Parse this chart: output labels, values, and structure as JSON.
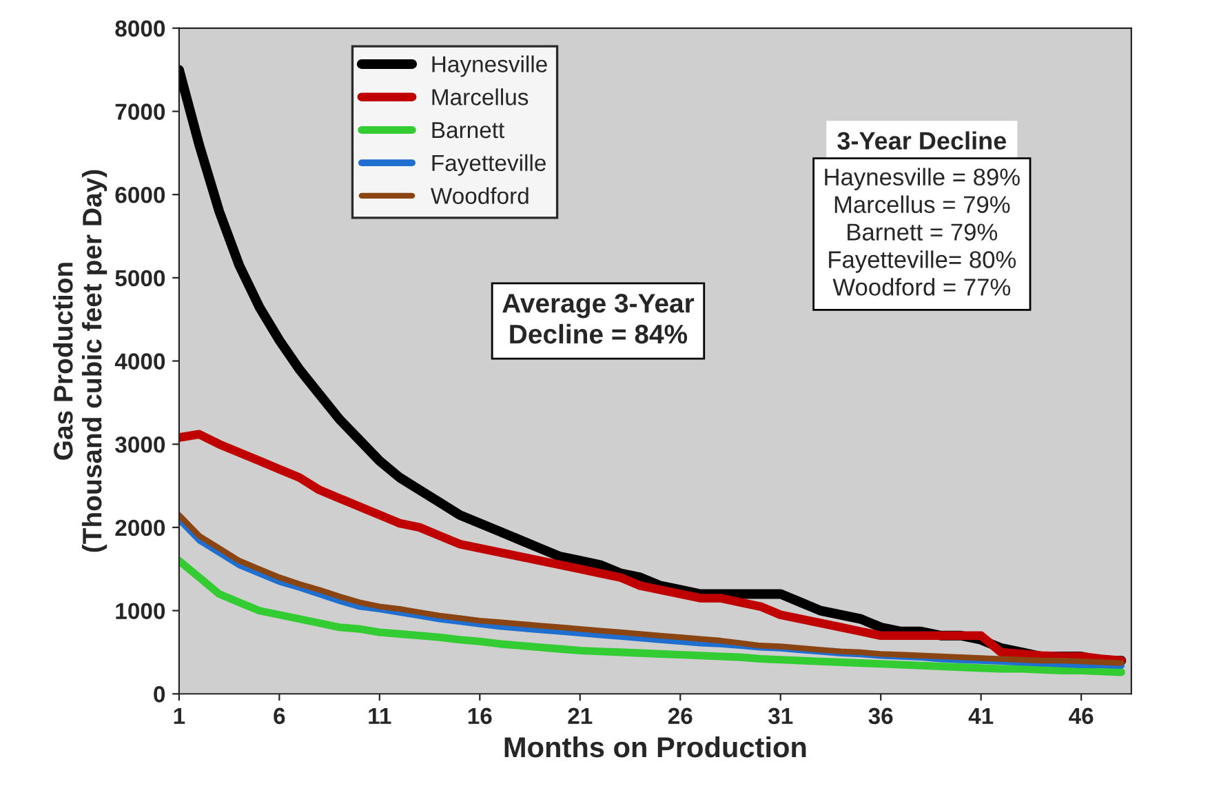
{
  "chart_data": {
    "type": "line",
    "xlabel": "Months on Production",
    "ylabel": "Gas Production\n(Thousand cubic feet per Day)",
    "x": [
      1,
      2,
      3,
      4,
      5,
      6,
      7,
      8,
      9,
      10,
      11,
      12,
      13,
      14,
      15,
      16,
      17,
      18,
      19,
      20,
      21,
      22,
      23,
      24,
      25,
      26,
      27,
      28,
      29,
      30,
      31,
      32,
      33,
      34,
      35,
      36,
      37,
      38,
      39,
      40,
      41,
      42,
      43,
      44,
      45,
      46,
      47,
      48
    ],
    "series": [
      {
        "name": "Haynesville",
        "color": "#000000",
        "values": [
          7500,
          6600,
          5800,
          5150,
          4650,
          4250,
          3900,
          3600,
          3300,
          3050,
          2800,
          2600,
          2450,
          2300,
          2150,
          2050,
          1950,
          1850,
          1750,
          1650,
          1600,
          1550,
          1450,
          1400,
          1300,
          1250,
          1200,
          1200,
          1200,
          1200,
          1200,
          1100,
          1000,
          950,
          900,
          800,
          750,
          750,
          700,
          700,
          650,
          550,
          500,
          450,
          450,
          450,
          400,
          400
        ]
      },
      {
        "name": "Marcellus",
        "color": "#c00000",
        "values": [
          3080,
          3120,
          3000,
          2900,
          2800,
          2700,
          2600,
          2450,
          2350,
          2250,
          2150,
          2050,
          2000,
          1900,
          1800,
          1750,
          1700,
          1650,
          1600,
          1550,
          1500,
          1450,
          1400,
          1300,
          1250,
          1200,
          1150,
          1150,
          1100,
          1050,
          950,
          900,
          850,
          800,
          750,
          700,
          700,
          700,
          700,
          700,
          700,
          500,
          480,
          460,
          450,
          450,
          420,
          400
        ]
      },
      {
        "name": "Barnett",
        "color": "#33cc33",
        "values": [
          1600,
          1400,
          1200,
          1100,
          1000,
          950,
          900,
          850,
          800,
          780,
          740,
          720,
          700,
          680,
          650,
          630,
          600,
          580,
          560,
          540,
          520,
          510,
          500,
          490,
          480,
          470,
          460,
          450,
          440,
          420,
          410,
          400,
          390,
          380,
          370,
          360,
          350,
          340,
          330,
          320,
          310,
          300,
          300,
          290,
          280,
          280,
          270,
          260
        ]
      },
      {
        "name": "Fayetteville",
        "color": "#1f6fd0",
        "values": [
          2100,
          1850,
          1700,
          1550,
          1450,
          1350,
          1280,
          1200,
          1120,
          1050,
          1020,
          980,
          940,
          900,
          870,
          840,
          810,
          790,
          770,
          750,
          730,
          710,
          690,
          670,
          650,
          630,
          610,
          600,
          580,
          560,
          550,
          530,
          510,
          490,
          480,
          460,
          450,
          440,
          420,
          410,
          400,
          390,
          380,
          370,
          360,
          350,
          350,
          340
        ]
      },
      {
        "name": "Woodford",
        "color": "#8b4513",
        "values": [
          2150,
          1900,
          1750,
          1600,
          1500,
          1400,
          1320,
          1250,
          1170,
          1100,
          1050,
          1020,
          980,
          940,
          910,
          880,
          860,
          840,
          820,
          800,
          780,
          760,
          740,
          720,
          700,
          680,
          660,
          640,
          610,
          580,
          570,
          550,
          530,
          510,
          500,
          480,
          470,
          460,
          450,
          440,
          430,
          420,
          410,
          400,
          400,
          390,
          380,
          370
        ]
      }
    ],
    "xlim": [
      1,
      48.5
    ],
    "xticks": [
      1,
      6,
      11,
      16,
      21,
      26,
      31,
      36,
      41,
      46
    ],
    "ylim": [
      0,
      8000
    ],
    "yticks": [
      0,
      1000,
      2000,
      3000,
      4000,
      5000,
      6000,
      7000,
      8000
    ],
    "annotations": [
      "Average 3-Year\nDecline = 84%",
      "3-Year Decline",
      "Haynesville = 89%\nMarcellus = 79%\nBarnett = 79%\nFayetteville= 80%\nWoodford = 77%"
    ],
    "legend": "top left",
    "line_style": "solid",
    "marker": "none"
  }
}
